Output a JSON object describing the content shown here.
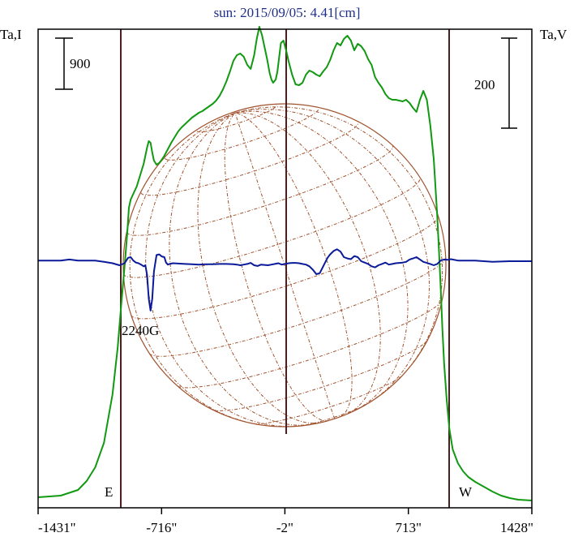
{
  "chart_data": {
    "type": "line",
    "title": "sun: 2015/09/05: 4.41[cm]",
    "left_axis_label": "Ta,I",
    "right_axis_label": "Ta,V",
    "x_ticks": [
      {
        "value": -1431,
        "label": "-1431\""
      },
      {
        "value": -716,
        "label": "-716\""
      },
      {
        "value": -2,
        "label": "-2\""
      },
      {
        "value": 713,
        "label": "713\""
      },
      {
        "value": 1428,
        "label": "1428\""
      }
    ],
    "xlim": [
      -1431,
      1428
    ],
    "scale_bars": [
      {
        "side": "left",
        "label": "900"
      },
      {
        "side": "right",
        "label": "200"
      }
    ],
    "limb_markers": [
      {
        "label": "E",
        "x": -910
      },
      {
        "label": "W",
        "x": 905
      }
    ],
    "center_marker_x": -2,
    "annotations": [
      {
        "text": "2240G",
        "x": -780
      }
    ],
    "solar_disk": {
      "grid": "heliographic",
      "color": "#a0522d"
    },
    "colors": {
      "intensity": "#119911",
      "polarization": "#0a1a99",
      "frame": "#000000",
      "markers": "#4a1f1f",
      "title": "#1f2f8a"
    },
    "series": [
      {
        "name": "Ta,I",
        "color": "#119911",
        "x": [
          -1431,
          -1300,
          -1200,
          -1150,
          -1100,
          -1050,
          -1000,
          -970,
          -950,
          -930,
          -915,
          -905,
          -895,
          -880,
          -860,
          -840,
          -820,
          -800,
          -790,
          -780,
          -770,
          -760,
          -745,
          -730,
          -715,
          -700,
          -680,
          -660,
          -640,
          -620,
          -600,
          -580,
          -560,
          -540,
          -520,
          -500,
          -480,
          -460,
          -440,
          -420,
          -400,
          -380,
          -360,
          -340,
          -320,
          -300,
          -280,
          -260,
          -240,
          -220,
          -200,
          -180,
          -165,
          -150,
          -135,
          -120,
          -105,
          -90,
          -80,
          -70,
          -55,
          -45,
          -35,
          -25,
          -10,
          5,
          20,
          40,
          60,
          80,
          100,
          120,
          140,
          160,
          180,
          200,
          220,
          240,
          260,
          280,
          300,
          320,
          340,
          360,
          380,
          400,
          420,
          440,
          460,
          480,
          500,
          520,
          540,
          560,
          580,
          600,
          620,
          640,
          660,
          680,
          700,
          720,
          740,
          760,
          780,
          800,
          820,
          840,
          860,
          870,
          880,
          890,
          900,
          910,
          920,
          935,
          950,
          970,
          1000,
          1030,
          1060,
          1100,
          1150,
          1200,
          1250,
          1300,
          1350,
          1428
        ],
        "values": [
          50,
          70,
          140,
          250,
          420,
          720,
          1320,
          1900,
          2420,
          2900,
          3300,
          3620,
          3720,
          3790,
          3880,
          4020,
          4160,
          4360,
          4440,
          4420,
          4300,
          4200,
          4150,
          4170,
          4210,
          4260,
          4340,
          4420,
          4490,
          4560,
          4610,
          4650,
          4690,
          4730,
          4760,
          4790,
          4810,
          4840,
          4870,
          4900,
          4940,
          5000,
          5080,
          5180,
          5300,
          5430,
          5500,
          5520,
          5480,
          5380,
          5330,
          5500,
          5700,
          5850,
          5750,
          5600,
          5450,
          5280,
          5200,
          5160,
          5200,
          5300,
          5480,
          5650,
          5680,
          5560,
          5420,
          5260,
          5140,
          5130,
          5160,
          5260,
          5310,
          5290,
          5260,
          5240,
          5300,
          5350,
          5440,
          5560,
          5650,
          5620,
          5700,
          5740,
          5680,
          5560,
          5640,
          5610,
          5550,
          5450,
          5380,
          5230,
          5160,
          5100,
          5020,
          4970,
          4950,
          4950,
          4940,
          4930,
          4950,
          4910,
          4850,
          4800,
          4950,
          5060,
          4950,
          4640,
          4220,
          3880,
          3520,
          3100,
          2650,
          2120,
          1700,
          1250,
          900,
          640,
          470,
          370,
          300,
          240,
          180,
          120,
          70,
          40,
          20,
          10
        ]
      },
      {
        "name": "Ta,V",
        "color": "#0a1a99",
        "x": [
          -1431,
          -1300,
          -1250,
          -1200,
          -1100,
          -1050,
          -1000,
          -960,
          -930,
          -910,
          -895,
          -880,
          -865,
          -850,
          -835,
          -820,
          -810,
          -800,
          -790,
          -780,
          -770,
          -760,
          -745,
          -730,
          -715,
          -700,
          -690,
          -680,
          -670,
          -650,
          -620,
          -580,
          -540,
          -500,
          -460,
          -420,
          -380,
          -340,
          -300,
          -280,
          -260,
          -240,
          -220,
          -200,
          -180,
          -160,
          -140,
          -120,
          -100,
          -80,
          -60,
          -40,
          -20,
          0,
          20,
          40,
          60,
          80,
          100,
          120,
          140,
          160,
          180,
          200,
          215,
          230,
          245,
          260,
          280,
          300,
          320,
          340,
          360,
          380,
          400,
          420,
          440,
          460,
          480,
          500,
          520,
          540,
          560,
          580,
          600,
          620,
          640,
          660,
          680,
          700,
          720,
          740,
          760,
          780,
          800,
          820,
          840,
          860,
          880,
          900,
          920,
          940,
          960,
          1000,
          1100,
          1150,
          1200,
          1250,
          1300,
          1428
        ],
        "values": [
          2,
          2,
          5,
          2,
          2,
          -2,
          -6,
          -12,
          -6,
          10,
          12,
          2,
          -4,
          -6,
          -10,
          -15,
          -12,
          -40,
          -110,
          -145,
          -110,
          -30,
          18,
          20,
          14,
          12,
          -4,
          -10,
          -8,
          -6,
          -7,
          -8,
          -9,
          -10,
          -9,
          -9,
          -8,
          -8,
          -9,
          -10,
          -12,
          -10,
          -8,
          -5,
          -12,
          -14,
          -10,
          -11,
          -12,
          -10,
          -8,
          -6,
          -10,
          -8,
          -6,
          -5,
          -5,
          -6,
          -8,
          -10,
          -15,
          -25,
          -38,
          -35,
          -20,
          -5,
          10,
          20,
          30,
          35,
          28,
          12,
          8,
          6,
          15,
          12,
          0,
          -4,
          -8,
          -15,
          -18,
          -12,
          -8,
          -4,
          -10,
          -8,
          -6,
          -5,
          -4,
          -2,
          5,
          8,
          12,
          5,
          -2,
          -5,
          -8,
          -12,
          -8,
          2,
          5,
          4,
          6,
          2,
          2,
          0,
          -2,
          -1,
          0,
          0
        ]
      }
    ]
  }
}
